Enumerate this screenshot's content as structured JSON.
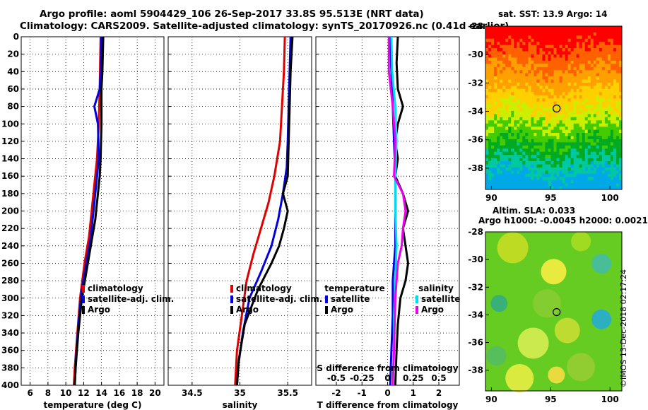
{
  "header": {
    "line1": "Argo profile: aoml 5904429_106 26-Sep-2017 33.8S 95.513E (NRT data)",
    "line2": "Climatology: CARS2009. Satellite-adjusted climatology: synTS_20170926.nc (0.41d earlier)"
  },
  "colors": {
    "climatology": "#e00000",
    "satellite": "#0000e0",
    "argo": "#000000",
    "salinity_sat": "#00ddee",
    "salinity_argo": "#ee00ee"
  },
  "chart_data": [
    {
      "type": "line",
      "name": "temperature-profile",
      "xlabel": "temperature (deg C)",
      "ylabel": "",
      "xlim": [
        5,
        21
      ],
      "ylim": [
        400,
        0
      ],
      "xticks": [
        6,
        8,
        10,
        12,
        14,
        16,
        18,
        20
      ],
      "yticks": [
        0,
        20,
        40,
        60,
        80,
        100,
        120,
        140,
        160,
        180,
        200,
        220,
        240,
        260,
        280,
        300,
        320,
        340,
        360,
        380,
        400
      ],
      "legend": [
        "climatology",
        "satellite-adj. clim.",
        "Argo"
      ],
      "series": [
        {
          "name": "climatology",
          "color": "#e00000",
          "points": [
            [
              13.9,
              0
            ],
            [
              13.8,
              60
            ],
            [
              13.7,
              100
            ],
            [
              13.5,
              140
            ],
            [
              13.2,
              170
            ],
            [
              12.9,
              200
            ],
            [
              12.6,
              230
            ],
            [
              12.1,
              260
            ],
            [
              11.6,
              300
            ],
            [
              11.3,
              340
            ],
            [
              11.0,
              380
            ],
            [
              10.9,
              400
            ]
          ]
        },
        {
          "name": "satellite-adj. clim.",
          "color": "#0000e0",
          "points": [
            [
              14.0,
              0
            ],
            [
              13.9,
              40
            ],
            [
              13.8,
              60
            ],
            [
              13.2,
              80
            ],
            [
              13.4,
              90
            ],
            [
              13.6,
              100
            ],
            [
              13.7,
              140
            ],
            [
              13.4,
              170
            ],
            [
              13.1,
              200
            ],
            [
              12.8,
              230
            ],
            [
              12.3,
              260
            ],
            [
              11.8,
              290
            ],
            [
              11.5,
              320
            ],
            [
              11.2,
              360
            ],
            [
              11.0,
              400
            ]
          ]
        },
        {
          "name": "Argo",
          "color": "#000000",
          "points": [
            [
              14.2,
              0
            ],
            [
              14.1,
              40
            ],
            [
              14.0,
              60
            ],
            [
              14.0,
              80
            ],
            [
              14.0,
              100
            ],
            [
              13.9,
              140
            ],
            [
              13.8,
              160
            ],
            [
              13.6,
              180
            ],
            [
              13.3,
              210
            ],
            [
              12.8,
              240
            ],
            [
              12.3,
              270
            ],
            [
              11.8,
              300
            ],
            [
              11.4,
              340
            ],
            [
              11.1,
              380
            ],
            [
              11.0,
              400
            ]
          ]
        }
      ]
    },
    {
      "type": "line",
      "name": "salinity-profile",
      "xlabel": "salinity",
      "xlim": [
        34.25,
        35.75
      ],
      "ylim": [
        400,
        0
      ],
      "xticks": [
        34.5,
        35,
        35.5
      ],
      "xticklabels": [
        "34.5",
        "35",
        "35.5"
      ],
      "legend": [
        "climatology",
        "satellite-adj. clim.",
        "Argo"
      ],
      "series": [
        {
          "name": "climatology",
          "color": "#e00000",
          "points": [
            [
              35.47,
              0
            ],
            [
              35.46,
              40
            ],
            [
              35.44,
              80
            ],
            [
              35.42,
              120
            ],
            [
              35.36,
              160
            ],
            [
              35.3,
              190
            ],
            [
              35.22,
              220
            ],
            [
              35.14,
              250
            ],
            [
              35.07,
              280
            ],
            [
              35.02,
              320
            ],
            [
              34.97,
              360
            ],
            [
              34.95,
              400
            ]
          ]
        },
        {
          "name": "satellite-adj. clim.",
          "color": "#0000e0",
          "points": [
            [
              35.53,
              0
            ],
            [
              35.52,
              40
            ],
            [
              35.51,
              80
            ],
            [
              35.5,
              120
            ],
            [
              35.49,
              150
            ],
            [
              35.45,
              180
            ],
            [
              35.4,
              210
            ],
            [
              35.33,
              240
            ],
            [
              35.22,
              270
            ],
            [
              35.1,
              300
            ],
            [
              35.03,
              340
            ],
            [
              34.98,
              380
            ],
            [
              34.97,
              400
            ]
          ]
        },
        {
          "name": "Argo",
          "color": "#000000",
          "points": [
            [
              35.55,
              0
            ],
            [
              35.53,
              40
            ],
            [
              35.52,
              80
            ],
            [
              35.51,
              120
            ],
            [
              35.5,
              160
            ],
            [
              35.45,
              180
            ],
            [
              35.5,
              200
            ],
            [
              35.46,
              220
            ],
            [
              35.41,
              240
            ],
            [
              35.33,
              260
            ],
            [
              35.19,
              290
            ],
            [
              35.05,
              330
            ],
            [
              34.99,
              370
            ],
            [
              34.97,
              400
            ]
          ]
        }
      ]
    },
    {
      "type": "line",
      "name": "difference-profile",
      "xlabel": "T difference from climatology",
      "xlabel_top": "S difference from climatology",
      "xlim": [
        -2.8,
        2.8
      ],
      "ylim": [
        400,
        0
      ],
      "xticks": [
        -2,
        -1,
        0,
        1,
        2
      ],
      "sticks": [
        -0.5,
        -0.25,
        0,
        0.25,
        0.5
      ],
      "sticklabels": [
        "-0.5",
        "-0.25",
        "0",
        "0.25",
        "0.5"
      ],
      "legend_temperature_title": "temperature",
      "legend_salinity_title": "salinity",
      "legend_labels": {
        "satellite": "satellite",
        "argo": "Argo"
      },
      "series": [
        {
          "name": "temperature satellite",
          "color": "#0000e0",
          "points": [
            [
              0.1,
              0
            ],
            [
              0.15,
              40
            ],
            [
              0.2,
              80
            ],
            [
              0.25,
              120
            ],
            [
              0.3,
              160
            ],
            [
              0.3,
              200
            ],
            [
              0.3,
              240
            ],
            [
              0.2,
              280
            ],
            [
              0.2,
              320
            ],
            [
              0.15,
              360
            ],
            [
              0.1,
              400
            ]
          ]
        },
        {
          "name": "temperature Argo",
          "color": "#000000",
          "points": [
            [
              0.4,
              0
            ],
            [
              0.35,
              30
            ],
            [
              0.4,
              60
            ],
            [
              0.6,
              80
            ],
            [
              0.4,
              100
            ],
            [
              0.3,
              120
            ],
            [
              0.4,
              140
            ],
            [
              0.3,
              160
            ],
            [
              0.6,
              180
            ],
            [
              0.8,
              200
            ],
            [
              0.6,
              220
            ],
            [
              0.7,
              240
            ],
            [
              0.8,
              260
            ],
            [
              0.7,
              280
            ],
            [
              0.5,
              300
            ],
            [
              0.4,
              330
            ],
            [
              0.35,
              360
            ],
            [
              0.3,
              400
            ]
          ]
        },
        {
          "name": "salinity satellite",
          "color": "#00ddee",
          "points": [
            [
              0.15,
              0
            ],
            [
              0.18,
              40
            ],
            [
              0.3,
              80
            ],
            [
              0.35,
              120
            ],
            [
              0.3,
              160
            ],
            [
              0.3,
              200
            ],
            [
              0.35,
              240
            ],
            [
              0.3,
              280
            ],
            [
              0.25,
              320
            ],
            [
              0.25,
              360
            ],
            [
              0.2,
              400
            ]
          ]
        },
        {
          "name": "salinity Argo",
          "color": "#ee00ee",
          "points": [
            [
              0.05,
              0
            ],
            [
              0.05,
              40
            ],
            [
              0.2,
              80
            ],
            [
              0.3,
              120
            ],
            [
              0.25,
              160
            ],
            [
              0.6,
              180
            ],
            [
              0.7,
              200
            ],
            [
              0.6,
              220
            ],
            [
              0.55,
              240
            ],
            [
              0.4,
              260
            ],
            [
              0.3,
              300
            ],
            [
              0.25,
              360
            ],
            [
              0.2,
              400
            ]
          ]
        }
      ]
    }
  ],
  "maps": {
    "sst": {
      "title": "sat. SST: 13.9 Argo: 14",
      "lon_range": [
        89.5,
        101
      ],
      "lat_range": [
        -39.5,
        -28
      ],
      "lon_ticks": [
        90,
        95,
        100
      ],
      "lat_ticks": [
        -28,
        -30,
        -32,
        -34,
        -36,
        -38
      ],
      "marker": {
        "lon": 95.5,
        "lat": -33.8
      }
    },
    "sla": {
      "title_line1": "Altim. SLA: 0.033",
      "title_line2": "Argo h1000: -0.0045 h2000: 0.0021",
      "lon_range": [
        89.5,
        101
      ],
      "lat_range": [
        -39.5,
        -28
      ],
      "lon_ticks": [
        90,
        95,
        100
      ],
      "lat_ticks": [
        -28,
        -30,
        -32,
        -34,
        -36,
        -38
      ],
      "marker": {
        "lon": 95.5,
        "lat": -33.8
      }
    }
  },
  "footer": {
    "stamp": "©IMOS 13-Dec-2018 02:17:24"
  }
}
